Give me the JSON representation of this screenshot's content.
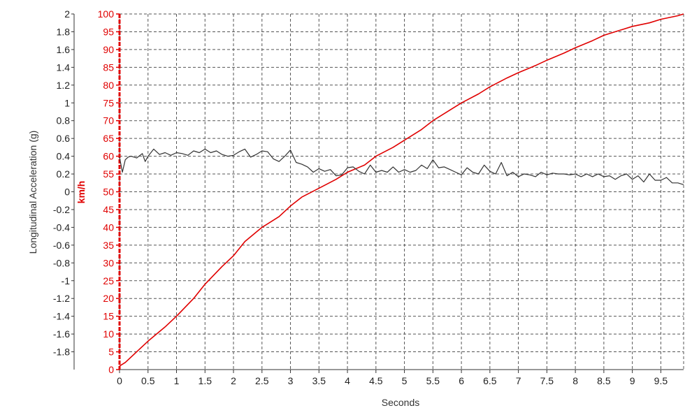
{
  "chart_data": {
    "type": "line",
    "title": "",
    "xlabel": "Seconds",
    "ylabel_left": "Longitudinal Acceleration (g)",
    "ylabel_right": "km/h",
    "xlim": [
      0,
      9.9
    ],
    "ylim_left": [
      -2,
      2
    ],
    "ylim_right": [
      0,
      100
    ],
    "x_ticks": [
      "0",
      "0.5",
      "1",
      "1.5",
      "2",
      "2.5",
      "3",
      "3.5",
      "4",
      "4.5",
      "5",
      "5.5",
      "6",
      "6.5",
      "7",
      "7.5",
      "8",
      "8.5",
      "9",
      "9.5"
    ],
    "y_ticks_left": [
      "2",
      "1.8",
      "1.6",
      "1.4",
      "1.2",
      "1",
      "0.8",
      "0.6",
      "0.4",
      "0.2",
      "0",
      "-0.2",
      "-0.4",
      "-0.6",
      "-0.8",
      "-1",
      "-1.2",
      "-1.4",
      "-1.6",
      "-1.8"
    ],
    "y_ticks_right": [
      "100",
      "95",
      "90",
      "85",
      "80",
      "75",
      "70",
      "65",
      "60",
      "55",
      "50",
      "45",
      "40",
      "35",
      "30",
      "25",
      "20",
      "15",
      "10",
      "5",
      "0"
    ],
    "grid": true,
    "colors": {
      "speed": "#e00000",
      "acceleration": "#333333",
      "grid": "#555555",
      "right_axis": "#e00000"
    },
    "series": [
      {
        "axis": "right",
        "x": [
          0,
          0.1,
          0.3,
          0.5,
          0.8,
          1.0,
          1.3,
          1.5,
          1.8,
          2.0,
          2.2,
          2.5,
          2.8,
          3.0,
          3.2,
          3.5,
          3.8,
          4.0,
          4.3,
          4.5,
          4.8,
          5.0,
          5.3,
          5.5,
          5.8,
          6.0,
          6.3,
          6.5,
          6.8,
          7.0,
          7.3,
          7.5,
          7.8,
          8.0,
          8.3,
          8.5,
          8.8,
          9.0,
          9.3,
          9.5,
          9.8,
          9.9
        ],
        "y": [
          1,
          2,
          5,
          8,
          12,
          15,
          20,
          24,
          29,
          32,
          36,
          40,
          43,
          46,
          48.5,
          51,
          53.5,
          55.5,
          57.5,
          60,
          62.5,
          64.5,
          67.5,
          70,
          73,
          75,
          77.5,
          79.5,
          82,
          83.5,
          85.5,
          87,
          89,
          90.5,
          92.5,
          94,
          95.5,
          96.5,
          97.5,
          98.5,
          99.5,
          100
        ]
      },
      {
        "axis": "left",
        "x": [
          0,
          0.05,
          0.1,
          0.15,
          0.2,
          0.3,
          0.4,
          0.45,
          0.5,
          0.6,
          0.7,
          0.8,
          0.9,
          1.0,
          1.1,
          1.2,
          1.3,
          1.4,
          1.5,
          1.6,
          1.7,
          1.8,
          1.9,
          2.0,
          2.1,
          2.2,
          2.3,
          2.4,
          2.5,
          2.6,
          2.7,
          2.8,
          2.9,
          3.0,
          3.1,
          3.2,
          3.3,
          3.4,
          3.5,
          3.6,
          3.7,
          3.8,
          3.9,
          4.0,
          4.1,
          4.2,
          4.3,
          4.4,
          4.5,
          4.6,
          4.7,
          4.8,
          4.9,
          5.0,
          5.1,
          5.2,
          5.3,
          5.4,
          5.5,
          5.6,
          5.7,
          5.8,
          5.9,
          6.0,
          6.1,
          6.2,
          6.3,
          6.4,
          6.5,
          6.6,
          6.7,
          6.8,
          6.9,
          7.0,
          7.1,
          7.2,
          7.3,
          7.4,
          7.5,
          7.6,
          7.7,
          7.8,
          7.9,
          8.0,
          8.1,
          8.2,
          8.3,
          8.4,
          8.5,
          8.6,
          8.7,
          8.8,
          8.9,
          9.0,
          9.1,
          9.2,
          9.3,
          9.4,
          9.5,
          9.6,
          9.7,
          9.8,
          9.9
        ],
        "y": [
          0.39,
          0.22,
          0.36,
          0.39,
          0.4,
          0.38,
          0.43,
          0.34,
          0.4,
          0.48,
          0.42,
          0.44,
          0.41,
          0.44,
          0.43,
          0.41,
          0.46,
          0.44,
          0.48,
          0.44,
          0.46,
          0.42,
          0.4,
          0.41,
          0.45,
          0.48,
          0.39,
          0.42,
          0.46,
          0.45,
          0.37,
          0.34,
          0.4,
          0.47,
          0.33,
          0.31,
          0.28,
          0.22,
          0.26,
          0.23,
          0.25,
          0.18,
          0.19,
          0.27,
          0.28,
          0.23,
          0.2,
          0.3,
          0.22,
          0.24,
          0.22,
          0.28,
          0.22,
          0.25,
          0.22,
          0.24,
          0.3,
          0.26,
          0.36,
          0.27,
          0.28,
          0.25,
          0.22,
          0.19,
          0.27,
          0.22,
          0.2,
          0.3,
          0.23,
          0.2,
          0.33,
          0.18,
          0.22,
          0.17,
          0.2,
          0.19,
          0.17,
          0.22,
          0.19,
          0.21,
          0.2,
          0.2,
          0.19,
          0.2,
          0.17,
          0.2,
          0.17,
          0.2,
          0.17,
          0.18,
          0.14,
          0.18,
          0.2,
          0.14,
          0.18,
          0.11,
          0.2,
          0.13,
          0.13,
          0.16,
          0.1,
          0.1,
          0.08
        ]
      }
    ]
  }
}
